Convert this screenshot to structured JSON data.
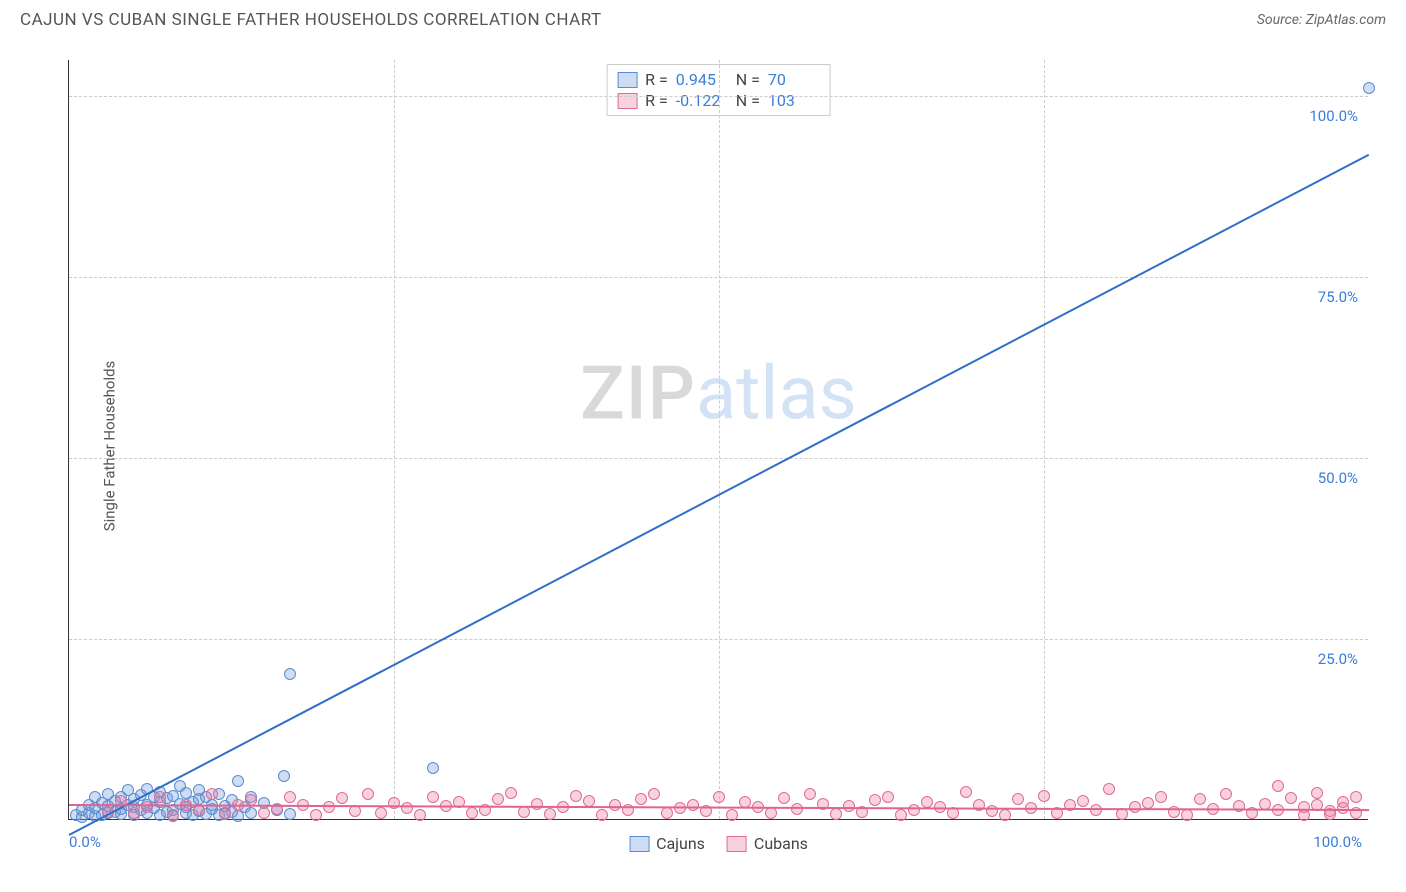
{
  "title": "CAJUN VS CUBAN SINGLE FATHER HOUSEHOLDS CORRELATION CHART",
  "source_label": "Source: ZipAtlas.com",
  "ylabel": "Single Father Households",
  "watermark": {
    "part1": "ZIP",
    "part2": "atlas"
  },
  "chart": {
    "type": "scatter",
    "background_color": "#ffffff",
    "grid_color": "#cccccc",
    "axis_color": "#333333",
    "xlim": [
      0,
      100
    ],
    "ylim": [
      0,
      105
    ],
    "ytick_positions": [
      25,
      50,
      75,
      100
    ],
    "ytick_labels": [
      "25.0%",
      "50.0%",
      "75.0%",
      "100.0%"
    ],
    "xtick_left": "0.0%",
    "xtick_right": "100.0%",
    "xgrid_positions": [
      25,
      50,
      75
    ],
    "point_radius": 6,
    "point_border_width": 1,
    "trend_line_width": 2,
    "series": [
      {
        "name": "Cajuns",
        "fill_color": "rgba(114,159,221,0.35)",
        "stroke_color": "#5a8dcf",
        "stats": {
          "R": "0.945",
          "N": "70"
        },
        "trend": {
          "x1": 0,
          "y1": -2.0,
          "x2": 100,
          "y2": 92.0,
          "color": "#2f6fc9"
        },
        "points": [
          [
            0.5,
            0.5
          ],
          [
            1,
            0.3
          ],
          [
            1,
            1.2
          ],
          [
            1.5,
            0.8
          ],
          [
            1.5,
            2.0
          ],
          [
            2,
            0.4
          ],
          [
            2,
            1.5
          ],
          [
            2,
            3.0
          ],
          [
            2.5,
            0.6
          ],
          [
            2.5,
            2.2
          ],
          [
            3,
            0.9
          ],
          [
            3,
            1.8
          ],
          [
            3,
            3.5
          ],
          [
            3.5,
            1.0
          ],
          [
            3.5,
            2.5
          ],
          [
            4,
            0.7
          ],
          [
            4,
            1.4
          ],
          [
            4,
            3.0
          ],
          [
            4.5,
            2.0
          ],
          [
            4.5,
            4.0
          ],
          [
            5,
            0.5
          ],
          [
            5,
            1.6
          ],
          [
            5,
            2.8
          ],
          [
            5.5,
            1.2
          ],
          [
            5.5,
            3.3
          ],
          [
            6,
            0.8
          ],
          [
            6,
            2.0
          ],
          [
            6,
            4.2
          ],
          [
            6.5,
            1.5
          ],
          [
            6.5,
            3.0
          ],
          [
            7,
            0.6
          ],
          [
            7,
            2.4
          ],
          [
            7,
            3.8
          ],
          [
            7.5,
            1.0
          ],
          [
            7.5,
            2.9
          ],
          [
            8,
            1.3
          ],
          [
            8,
            3.2
          ],
          [
            8,
            0.4
          ],
          [
            8.5,
            2.1
          ],
          [
            8.5,
            4.5
          ],
          [
            9,
            0.9
          ],
          [
            9,
            1.7
          ],
          [
            9,
            3.6
          ],
          [
            9.5,
            2.3
          ],
          [
            9.5,
            0.6
          ],
          [
            10,
            1.1
          ],
          [
            10,
            2.8
          ],
          [
            10,
            4.0
          ],
          [
            10.5,
            0.7
          ],
          [
            10.5,
            3.1
          ],
          [
            11,
            1.4
          ],
          [
            11,
            2.0
          ],
          [
            11.5,
            0.5
          ],
          [
            11.5,
            3.4
          ],
          [
            12,
            1.8
          ],
          [
            12,
            0.8
          ],
          [
            12.5,
            2.6
          ],
          [
            12.5,
            1.0
          ],
          [
            13,
            0.4
          ],
          [
            13,
            5.2
          ],
          [
            13.5,
            1.6
          ],
          [
            14,
            0.9
          ],
          [
            14,
            3.0
          ],
          [
            15,
            2.2
          ],
          [
            16,
            1.2
          ],
          [
            16.5,
            6.0
          ],
          [
            17,
            0.7
          ],
          [
            17,
            20.0
          ],
          [
            28,
            7.0
          ],
          [
            100,
            101
          ]
        ]
      },
      {
        "name": "Cubans",
        "fill_color": "rgba(236,128,164,0.35)",
        "stroke_color": "#e06b94",
        "stats": {
          "R": "-0.122",
          "N": "103"
        },
        "trend": {
          "x1": 0,
          "y1": 2.2,
          "x2": 100,
          "y2": 1.5,
          "color": "#e06394"
        },
        "points": [
          [
            3,
            1.0
          ],
          [
            4,
            2.5
          ],
          [
            5,
            0.8
          ],
          [
            6,
            1.6
          ],
          [
            7,
            3.0
          ],
          [
            8,
            0.5
          ],
          [
            9,
            2.0
          ],
          [
            10,
            1.2
          ],
          [
            11,
            3.4
          ],
          [
            12,
            0.7
          ],
          [
            13,
            1.9
          ],
          [
            14,
            2.6
          ],
          [
            15,
            0.9
          ],
          [
            16,
            1.4
          ],
          [
            17,
            3.1
          ],
          [
            18,
            2.0
          ],
          [
            19,
            0.6
          ],
          [
            20,
            1.7
          ],
          [
            21,
            2.9
          ],
          [
            22,
            1.1
          ],
          [
            23,
            3.5
          ],
          [
            24,
            0.8
          ],
          [
            25,
            2.2
          ],
          [
            26,
            1.5
          ],
          [
            27,
            0.5
          ],
          [
            28,
            3.0
          ],
          [
            29,
            1.8
          ],
          [
            30,
            2.4
          ],
          [
            31,
            0.9
          ],
          [
            32,
            1.3
          ],
          [
            33,
            2.8
          ],
          [
            34,
            3.6
          ],
          [
            35,
            1.0
          ],
          [
            36,
            2.1
          ],
          [
            37,
            0.7
          ],
          [
            38,
            1.6
          ],
          [
            39,
            3.2
          ],
          [
            40,
            2.5
          ],
          [
            41,
            0.6
          ],
          [
            42,
            1.9
          ],
          [
            43,
            1.2
          ],
          [
            44,
            2.7
          ],
          [
            45,
            3.4
          ],
          [
            46,
            0.8
          ],
          [
            47,
            1.5
          ],
          [
            48,
            2.0
          ],
          [
            49,
            1.1
          ],
          [
            50,
            3.0
          ],
          [
            51,
            0.5
          ],
          [
            52,
            2.3
          ],
          [
            53,
            1.7
          ],
          [
            54,
            0.9
          ],
          [
            55,
            2.9
          ],
          [
            56,
            1.4
          ],
          [
            57,
            3.5
          ],
          [
            58,
            2.1
          ],
          [
            59,
            0.7
          ],
          [
            60,
            1.8
          ],
          [
            61,
            1.0
          ],
          [
            62,
            2.6
          ],
          [
            63,
            3.1
          ],
          [
            64,
            0.6
          ],
          [
            65,
            1.3
          ],
          [
            66,
            2.4
          ],
          [
            67,
            1.6
          ],
          [
            68,
            0.8
          ],
          [
            69,
            3.8
          ],
          [
            70,
            2.0
          ],
          [
            71,
            1.1
          ],
          [
            72,
            0.5
          ],
          [
            73,
            2.8
          ],
          [
            74,
            1.5
          ],
          [
            75,
            3.2
          ],
          [
            76,
            0.9
          ],
          [
            77,
            1.9
          ],
          [
            78,
            2.5
          ],
          [
            79,
            1.2
          ],
          [
            80,
            4.2
          ],
          [
            81,
            0.7
          ],
          [
            82,
            1.7
          ],
          [
            83,
            2.2
          ],
          [
            84,
            3.0
          ],
          [
            85,
            1.0
          ],
          [
            86,
            0.6
          ],
          [
            87,
            2.7
          ],
          [
            88,
            1.4
          ],
          [
            89,
            3.4
          ],
          [
            90,
            1.8
          ],
          [
            91,
            0.8
          ],
          [
            92,
            2.1
          ],
          [
            93,
            1.3
          ],
          [
            93,
            4.5
          ],
          [
            94,
            2.9
          ],
          [
            95,
            0.5
          ],
          [
            95,
            1.6
          ],
          [
            96,
            3.6
          ],
          [
            96,
            2.0
          ],
          [
            97,
            1.1
          ],
          [
            97,
            0.7
          ],
          [
            98,
            2.4
          ],
          [
            98,
            1.5
          ],
          [
            99,
            3.0
          ],
          [
            99,
            0.9
          ]
        ]
      }
    ]
  },
  "legend_labels": {
    "cajuns": "Cajuns",
    "cubans": "Cubans"
  },
  "stat_labels": {
    "R": "R =",
    "N": "N ="
  }
}
